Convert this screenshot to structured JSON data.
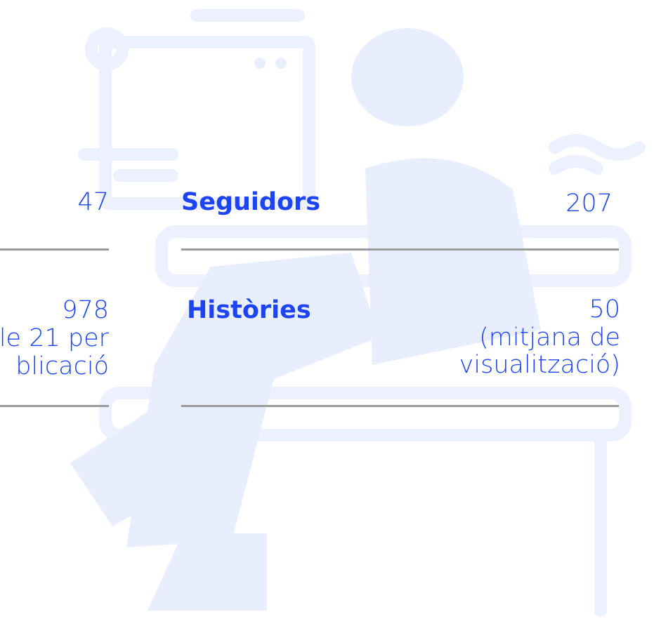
{
  "left_column": {
    "rows": [
      {
        "value": "47"
      },
      {
        "value": "978",
        "note": [
          "le 21 per",
          "blicació"
        ]
      }
    ]
  },
  "right_column": {
    "rows": [
      {
        "label": "Seguidors",
        "value": "207"
      },
      {
        "label": "Històries",
        "value": "50",
        "note": [
          "(mitjana de",
          "visualització)"
        ]
      }
    ]
  }
}
